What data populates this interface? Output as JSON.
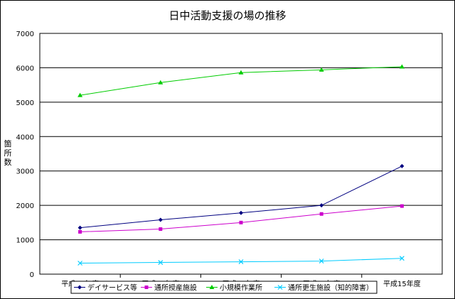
{
  "chart_data": {
    "type": "line",
    "title": "日中活動支援の場の推移",
    "ylabel": "箇所数",
    "xlabel": "",
    "ylim": [
      0,
      7000
    ],
    "yticks": [
      0,
      1000,
      2000,
      3000,
      4000,
      5000,
      6000,
      7000
    ],
    "grid": true,
    "legend_position": "bottom",
    "categories": [
      "平成11年度",
      "平成12年度",
      "平成13年度",
      "平成14年度",
      "平成15年度"
    ],
    "series": [
      {
        "name": "デイサービス等",
        "values": [
          1350,
          1580,
          1780,
          2000,
          3140
        ],
        "color": "#000080",
        "marker": "diamond"
      },
      {
        "name": "通所授産施設",
        "values": [
          1230,
          1310,
          1500,
          1750,
          1980
        ],
        "color": "#cc00cc",
        "marker": "square"
      },
      {
        "name": "小規模作業所",
        "values": [
          5200,
          5570,
          5860,
          5940,
          6030
        ],
        "color": "#00cc00",
        "marker": "triangle"
      },
      {
        "name": "通所更生施設（知的障害）",
        "values": [
          320,
          340,
          360,
          380,
          460
        ],
        "color": "#00ccff",
        "marker": "cross"
      }
    ]
  }
}
